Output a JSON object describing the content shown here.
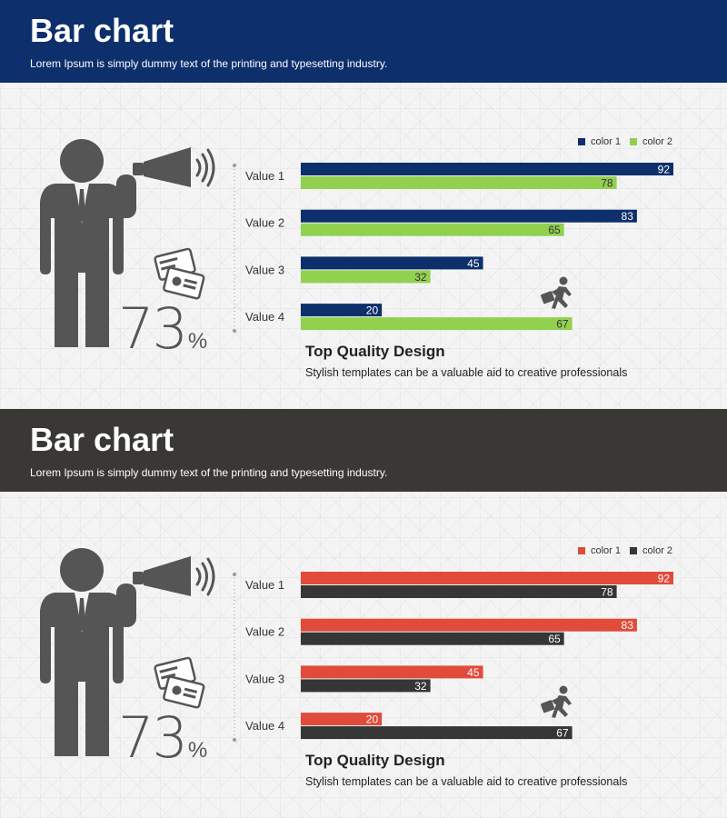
{
  "slides": [
    {
      "header_title": "Bar chart",
      "header_subtitle": "Lorem Ipsum is simply dummy text of the printing and typesetting industry.",
      "percent_value": "73",
      "percent_sign": "%",
      "bottom_title": "Top Quality  Design",
      "bottom_desc": "Stylish templates can be a valuable aid to  creative professionals",
      "colors": {
        "header": "#0d2f6b",
        "series1": "#0d2f6b",
        "series2": "#92d050",
        "label1": "#ffffff",
        "label2": "#333333"
      },
      "icons": [
        "person-icon",
        "megaphone-icon",
        "sound-waves-icon",
        "id-cards-icon",
        "running-businessman-icon"
      ]
    },
    {
      "header_title": "Bar chart",
      "header_subtitle": "Lorem Ipsum is simply dummy text of the printing and typesetting industry.",
      "percent_value": "73",
      "percent_sign": "%",
      "bottom_title": "Top Quality  Design",
      "bottom_desc": "Stylish templates can be a valuable aid to  creative professionals",
      "colors": {
        "header": "#3a3835",
        "series1": "#e04b3a",
        "series2": "#363636",
        "label1": "#ffffff",
        "label2": "#ffffff"
      },
      "icons": [
        "person-icon",
        "megaphone-icon",
        "sound-waves-icon",
        "id-cards-icon",
        "running-businessman-icon"
      ]
    }
  ],
  "chart_data": [
    {
      "type": "bar",
      "orientation": "horizontal",
      "categories": [
        "Value 1",
        "Value 2",
        "Value 3",
        "Value 4"
      ],
      "series": [
        {
          "name": "color 1",
          "values": [
            92,
            83,
            45,
            20
          ],
          "color": "#0d2f6b"
        },
        {
          "name": "color 2",
          "values": [
            78,
            65,
            32,
            67
          ],
          "color": "#92d050"
        }
      ],
      "legend": "top-right",
      "data_labels": true,
      "xlim": [
        0,
        92
      ]
    },
    {
      "type": "bar",
      "orientation": "horizontal",
      "categories": [
        "Value 1",
        "Value 2",
        "Value 3",
        "Value 4"
      ],
      "series": [
        {
          "name": "color 1",
          "values": [
            92,
            83,
            45,
            20
          ],
          "color": "#e04b3a"
        },
        {
          "name": "color 2",
          "values": [
            78,
            65,
            32,
            67
          ],
          "color": "#363636"
        }
      ],
      "legend": "top-right",
      "data_labels": true,
      "xlim": [
        0,
        92
      ]
    }
  ]
}
